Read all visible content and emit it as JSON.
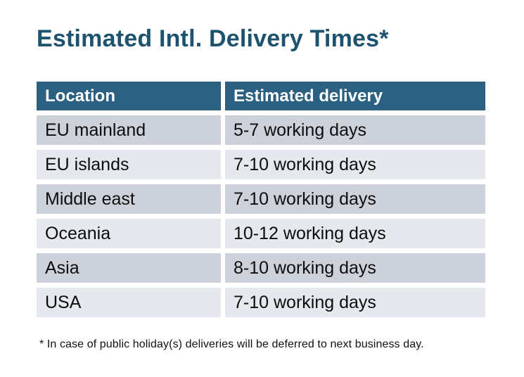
{
  "page": {
    "title": "Estimated Intl. Delivery Times*",
    "footnote": "* In case of public holiday(s) deliveries will be deferred to next business day."
  },
  "colors": {
    "page_bg": "#ffffff",
    "title_text": "#1d536e",
    "header_bg": "#2b6080",
    "header_text": "#ffffff",
    "row_dark": "#cdd2da",
    "row_light": "#e5e8ec",
    "cell_text": "#0d0d0d",
    "footnote_text": "#111111"
  },
  "chart_data": {
    "type": "table",
    "title": "Estimated Intl. Delivery Times*",
    "columns": [
      "Location",
      "Estimated delivery"
    ],
    "rows": [
      [
        "EU mainland",
        "5-7 working days"
      ],
      [
        "EU islands",
        "7-10 working days"
      ],
      [
        "Middle east",
        "7-10 working days"
      ],
      [
        "Oceania",
        "10-12 working days"
      ],
      [
        "Asia",
        "8-10 working days"
      ],
      [
        "USA",
        "7-10 working days"
      ]
    ],
    "footnote": "* In case of public holiday(s) deliveries will be deferred to next business day.",
    "layout": {
      "header_style": "dark-teal banner, white bold text",
      "row_striping": "alternating gray starting dark",
      "grid": "white gaps between cells, no outer border"
    }
  }
}
